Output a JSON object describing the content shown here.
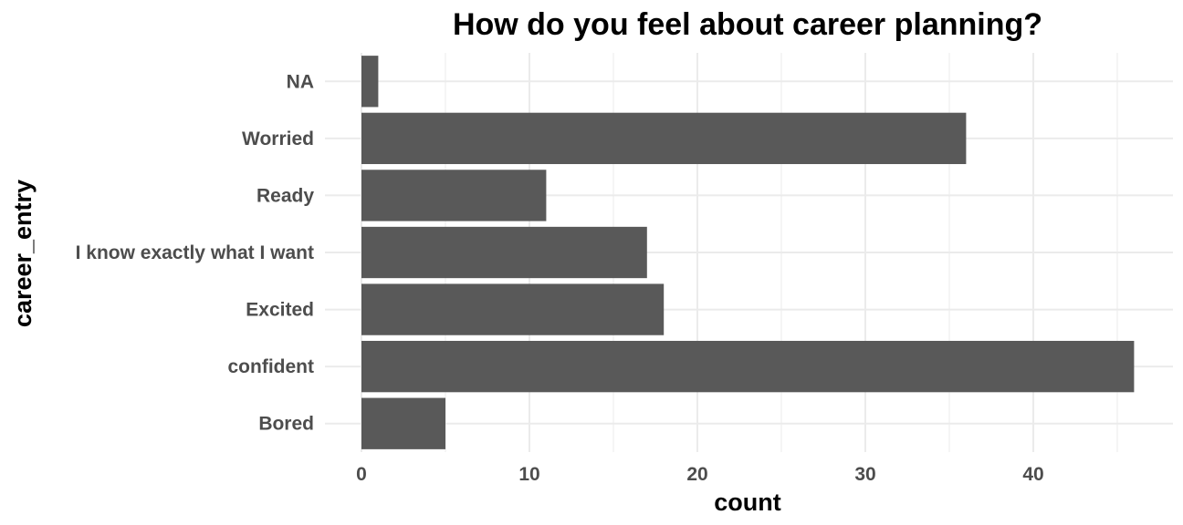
{
  "chart_data": {
    "type": "bar",
    "orientation": "horizontal",
    "title": "How do you feel about career  planning?",
    "xlabel": "count",
    "ylabel": "career_entry",
    "categories": [
      "Bored",
      "confident",
      "Excited",
      "I know exactly what I want",
      "Ready",
      "Worried",
      "NA"
    ],
    "values": [
      5,
      46,
      18,
      17,
      11,
      36,
      1
    ],
    "xlim": [
      0,
      48
    ],
    "x_ticks": [
      "0",
      "10",
      "20",
      "30",
      "40"
    ],
    "x_tick_values": [
      0,
      10,
      20,
      30,
      40
    ],
    "grid": true,
    "legend": "none",
    "bar_color": "#595959"
  }
}
